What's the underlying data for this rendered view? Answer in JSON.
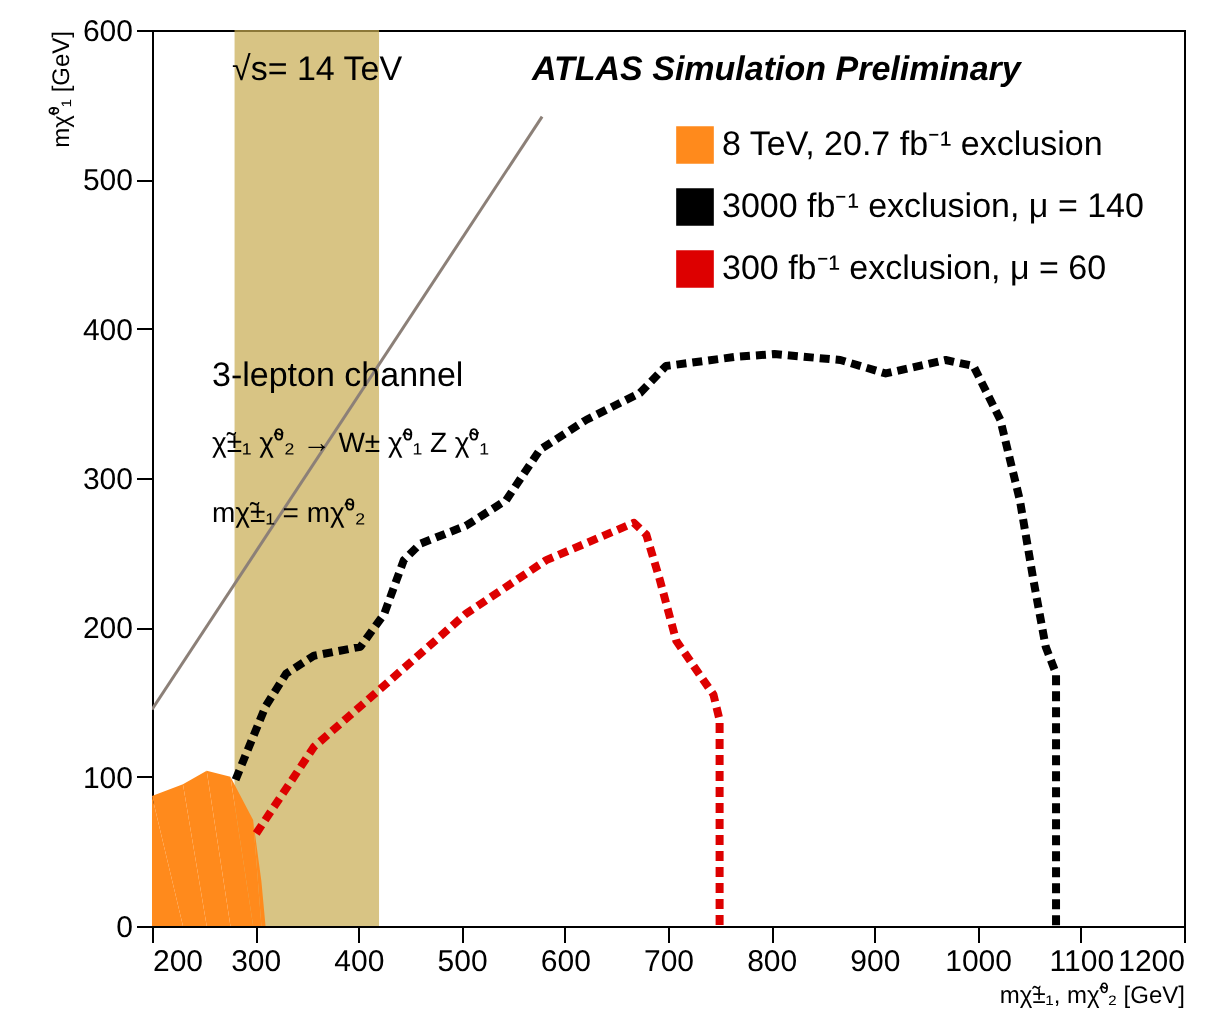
{
  "chart_data": {
    "type": "line",
    "xlabel": "mχ̃±₁, mχ̃⁰₂ [GeV]",
    "ylabel": "mχ̃⁰₁ [GeV]",
    "annotations": [
      "√s= 14 TeV",
      "ATLAS  Simulation Preliminary",
      "3-lepton channel",
      "χ̃±₁ χ̃⁰₂ → W± χ̃⁰₁ Z χ̃⁰₁",
      "mχ̃±₁ = mχ̃⁰₂"
    ],
    "xlim": [
      200,
      1200
    ],
    "xticks": [
      200,
      300,
      400,
      500,
      600,
      700,
      800,
      900,
      1000,
      1100,
      1200
    ],
    "ylim": [
      0,
      600
    ],
    "yticks": [
      0,
      100,
      200,
      300,
      400,
      500,
      600
    ],
    "grid": false,
    "legend": "top right",
    "marker": "none",
    "bands": [
      {
        "axis": "x",
        "from": 280,
        "to": 420,
        "color": "#c8ab50"
      }
    ],
    "series": [
      {
        "color": "#8c8078",
        "line_style": "solid",
        "x": [
          200,
          578
        ],
        "values": [
          145,
          542
        ]
      },
      {
        "type": "area",
        "name": "8 TeV, 20.7 fb⁻¹ exclusion",
        "color": "#ff8a1c",
        "x": [
          200,
          230,
          253,
          276,
          298,
          306,
          310
        ],
        "values": [
          87,
          95,
          104,
          100,
          71,
          30,
          0
        ]
      },
      {
        "name": "3000 fb⁻¹ exclusion, μ = 140",
        "color": "#000000",
        "line_style": "dashed",
        "x": [
          281,
          310,
          330,
          357,
          402,
          425,
          444,
          460,
          504,
          543,
          576,
          621,
          673,
          698,
          764,
          803,
          867,
          911,
          969,
          996,
          1022,
          1041,
          1054,
          1066,
          1076,
          1076
        ],
        "values": [
          98,
          147,
          169,
          181,
          187,
          209,
          245,
          256,
          268,
          285,
          319,
          339,
          357,
          375,
          381,
          383,
          379,
          370,
          379,
          375,
          339,
          285,
          232,
          187,
          169,
          0
        ]
      },
      {
        "name": "300 fb⁻¹ exclusion, μ = 60",
        "color": "#dd0000",
        "line_style": "dashed",
        "x": [
          301,
          357,
          415,
          504,
          582,
          667,
          679,
          692,
          708,
          744,
          750,
          750
        ],
        "values": [
          62,
          120,
          155,
          209,
          245,
          270,
          262,
          232,
          191,
          155,
          138,
          0
        ]
      }
    ]
  }
}
